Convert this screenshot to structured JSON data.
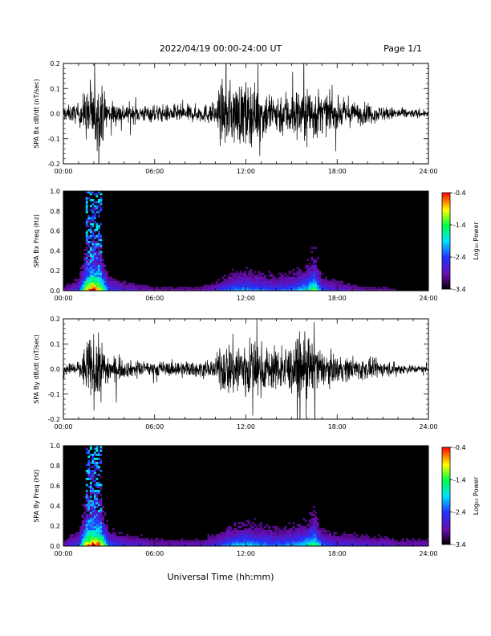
{
  "header": {
    "date_range": "2022/04/19  00:00-24:00 UT",
    "page": "Page 1/1"
  },
  "x_axis_title": "Universal Time (hh:mm)",
  "colorbar": {
    "label": "Log₁₀ Power",
    "ticks": [
      "-0.4",
      "-1.4",
      "-2.4",
      "-3.4"
    ],
    "range": [
      -3.4,
      -0.4
    ],
    "colors": [
      "#000000",
      "#6a0dad",
      "#2233ff",
      "#00e5ff",
      "#00ff44",
      "#ffff00",
      "#ff0000"
    ]
  },
  "chart_data": [
    {
      "type": "line",
      "name": "panel-bx-dbdt",
      "ylabel": "SPA Bx dB/dt (nT/sec)",
      "xlim": [
        0,
        24
      ],
      "ylim": [
        -0.2,
        0.2
      ],
      "yticks": [
        "-0.2",
        "-0.1",
        "0.0",
        "0.1",
        "0.2"
      ],
      "xticks": [
        "00:00",
        "06:00",
        "12:00",
        "18:00",
        "24:00"
      ],
      "envelope_hours": [
        0,
        1,
        1.6,
        2.0,
        2.5,
        3,
        4,
        5,
        6,
        7,
        8,
        9,
        10,
        10.3,
        11,
        12,
        13,
        14,
        15,
        16,
        16.5,
        17,
        18,
        19,
        20,
        21,
        22,
        23,
        24
      ],
      "envelope_amplitude": [
        0.05,
        0.07,
        0.2,
        0.22,
        0.2,
        0.09,
        0.07,
        0.06,
        0.06,
        0.06,
        0.06,
        0.06,
        0.08,
        0.2,
        0.22,
        0.22,
        0.18,
        0.15,
        0.17,
        0.2,
        0.2,
        0.14,
        0.1,
        0.08,
        0.07,
        0.05,
        0.04,
        0.03,
        0.02
      ],
      "color": "#000000"
    },
    {
      "type": "heatmap",
      "name": "panel-bx-spectrogram",
      "ylabel": "SPA Bx Freq (Hz)",
      "xlim": [
        0,
        24
      ],
      "ylim": [
        0,
        1.0
      ],
      "yticks": [
        "0.0",
        "0.2",
        "0.4",
        "0.6",
        "0.8",
        "1.0"
      ],
      "xticks": [
        "00:00",
        "06:00",
        "12:00",
        "18:00",
        "24:00"
      ],
      "activity_hours": [
        0,
        1,
        1.5,
        1.9,
        2.4,
        3,
        4,
        5,
        6,
        7,
        8,
        9,
        10,
        11,
        12,
        13,
        14,
        15,
        16,
        16.5,
        17,
        18,
        19,
        20,
        21,
        22,
        23,
        24
      ],
      "activity_level": [
        0.15,
        0.3,
        0.85,
        1.0,
        0.9,
        0.35,
        0.25,
        0.2,
        0.15,
        0.15,
        0.15,
        0.15,
        0.25,
        0.4,
        0.45,
        0.4,
        0.35,
        0.4,
        0.55,
        0.75,
        0.35,
        0.25,
        0.2,
        0.15,
        0.15,
        0.1,
        0.1,
        0.1
      ],
      "zlim": [
        -3.4,
        -0.4
      ]
    },
    {
      "type": "line",
      "name": "panel-by-dbdt",
      "ylabel": "SPA By dB/dt (nT/sec)",
      "xlim": [
        0,
        24
      ],
      "ylim": [
        -0.2,
        0.2
      ],
      "yticks": [
        "-0.2",
        "-0.1",
        "0.0",
        "0.1",
        "0.2"
      ],
      "xticks": [
        "00:00",
        "06:00",
        "12:00",
        "18:00",
        "24:00"
      ],
      "envelope_hours": [
        0,
        1,
        1.6,
        2.0,
        2.5,
        3,
        4,
        5,
        6,
        7,
        8,
        9,
        10,
        10.3,
        11,
        12,
        13,
        14,
        15,
        16,
        16.5,
        17,
        18,
        19,
        20,
        21,
        22,
        23,
        24
      ],
      "envelope_amplitude": [
        0.03,
        0.06,
        0.2,
        0.22,
        0.2,
        0.1,
        0.06,
        0.05,
        0.05,
        0.05,
        0.06,
        0.05,
        0.07,
        0.15,
        0.2,
        0.22,
        0.17,
        0.14,
        0.17,
        0.22,
        0.2,
        0.12,
        0.09,
        0.08,
        0.07,
        0.05,
        0.04,
        0.03,
        0.02
      ],
      "color": "#000000"
    },
    {
      "type": "heatmap",
      "name": "panel-by-spectrogram",
      "ylabel": "SPA By Freq (Hz)",
      "xlim": [
        0,
        24
      ],
      "ylim": [
        0,
        1.0
      ],
      "yticks": [
        "0.0",
        "0.2",
        "0.4",
        "0.6",
        "0.8",
        "1.0"
      ],
      "xticks": [
        "00:00",
        "06:00",
        "12:00",
        "18:00",
        "24:00"
      ],
      "activity_hours": [
        0,
        1,
        1.5,
        1.9,
        2.4,
        3,
        4,
        5,
        6,
        7,
        8,
        9,
        10,
        11,
        12,
        13,
        14,
        15,
        16,
        16.5,
        17,
        18,
        19,
        20,
        21,
        22,
        23,
        24
      ],
      "activity_level": [
        0.2,
        0.35,
        0.9,
        1.0,
        0.95,
        0.4,
        0.3,
        0.25,
        0.2,
        0.2,
        0.2,
        0.2,
        0.3,
        0.45,
        0.5,
        0.45,
        0.4,
        0.45,
        0.55,
        0.7,
        0.4,
        0.3,
        0.3,
        0.25,
        0.25,
        0.2,
        0.2,
        0.2
      ],
      "zlim": [
        -3.4,
        -0.4
      ]
    }
  ]
}
